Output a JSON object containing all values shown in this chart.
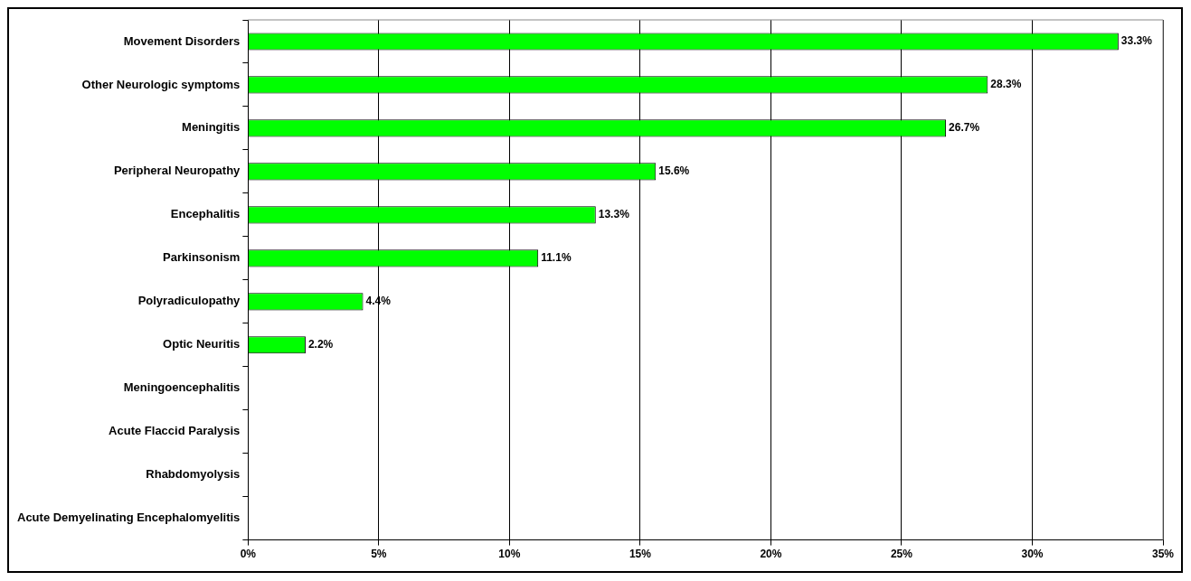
{
  "chart_data": {
    "type": "bar",
    "orientation": "horizontal",
    "categories": [
      "Movement Disorders",
      "Other Neurologic symptoms",
      "Meningitis",
      "Peripheral Neuropathy",
      "Encephalitis",
      "Parkinsonism",
      "Polyradiculopathy",
      "Optic Neuritis",
      "Meningoencephalitis",
      "Acute Flaccid Paralysis",
      "Rhabdomyolysis",
      "Acute Demyelinating Encephalomyelitis"
    ],
    "values": [
      33.3,
      28.3,
      26.7,
      15.6,
      13.3,
      11.1,
      4.4,
      2.2,
      0,
      0,
      0,
      0
    ],
    "value_labels": [
      "33.3%",
      "28.3%",
      "26.7%",
      "15.6%",
      "13.3%",
      "11.1%",
      "4.4%",
      "2.2%",
      null,
      null,
      null,
      null
    ],
    "color": "#00ff00",
    "xlim": [
      0,
      35
    ],
    "xticks": [
      {
        "value": 0,
        "label": "0%"
      },
      {
        "value": 5,
        "label": "5%"
      },
      {
        "value": 10,
        "label": "10%"
      },
      {
        "value": 15,
        "label": "15%"
      },
      {
        "value": 20,
        "label": "20%"
      },
      {
        "value": 25,
        "label": "25%"
      },
      {
        "value": 30,
        "label": "30%"
      },
      {
        "value": 35,
        "label": "35%"
      }
    ],
    "grid": "x",
    "legend": false
  }
}
